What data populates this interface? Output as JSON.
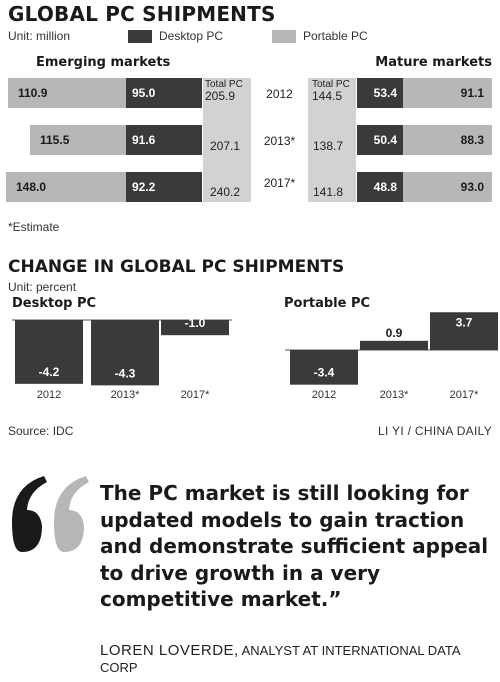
{
  "header": {
    "title": "GLOBAL PC SHIPMENTS",
    "unit": "Unit: million",
    "legend": [
      {
        "label": "Desktop PC",
        "color": "#3a3a3a"
      },
      {
        "label": "Portable PC",
        "color": "#b7b7b7"
      }
    ],
    "left_group": "Emerging markets",
    "right_group": "Mature markets",
    "total_label": "Total PC",
    "note": "*Estimate"
  },
  "change": {
    "title": "CHANGE IN GLOBAL PC SHIPMENTS",
    "unit": "Unit: percent",
    "source": "Source: IDC",
    "credit": "LI YI / CHINA DAILY"
  },
  "quote": {
    "text": "The PC market is still looking for updated models to gain traction and demonstrate sufficient appeal to drive growth in a very competitive market.”",
    "mark": "“",
    "author_name": "LOREN LOVERDE,",
    "author_title": "ANALYST AT INTERNATIONAL DATA CORP"
  },
  "chart_data": [
    {
      "type": "bar",
      "title": "GLOBAL PC SHIPMENTS",
      "unit": "Unit: million",
      "categories": [
        "2012",
        "2013*",
        "2017*"
      ],
      "groups": [
        {
          "name": "Emerging markets",
          "series": [
            {
              "name": "Portable PC",
              "values": [
                110.9,
                115.5,
                148.0
              ]
            },
            {
              "name": "Desktop PC",
              "values": [
                95.0,
                91.6,
                92.2
              ]
            }
          ],
          "totals": [
            205.9,
            207.1,
            240.2
          ]
        },
        {
          "name": "Mature markets",
          "series": [
            {
              "name": "Desktop PC",
              "values": [
                53.4,
                50.4,
                48.8
              ]
            },
            {
              "name": "Portable PC",
              "values": [
                91.1,
                88.3,
                93.0
              ]
            }
          ],
          "totals": [
            144.5,
            138.7,
            141.8
          ]
        }
      ]
    },
    {
      "type": "bar",
      "title": "Desktop PC",
      "unit": "Unit: percent",
      "categories": [
        "2012",
        "2013*",
        "2017*"
      ],
      "values": [
        -4.2,
        -4.3,
        -1.0
      ],
      "labels": [
        "-4.2",
        "-4.3",
        "-1.0"
      ]
    },
    {
      "type": "bar",
      "title": "Portable PC",
      "unit": "Unit: percent",
      "categories": [
        "2012",
        "2013*",
        "2017*"
      ],
      "values": [
        -3.4,
        0.9,
        3.7
      ],
      "labels": [
        "-3.4",
        "0.9",
        "3.7"
      ]
    }
  ]
}
